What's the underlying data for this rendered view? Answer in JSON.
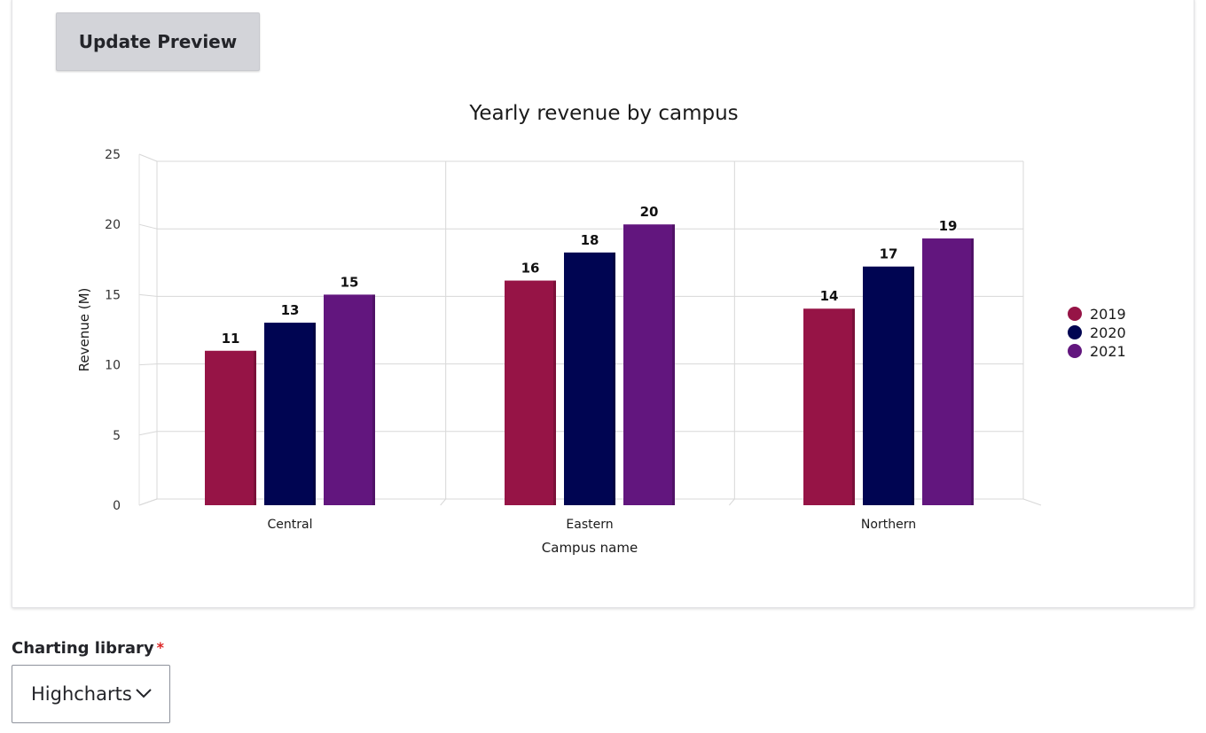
{
  "toolbar": {
    "update_preview_label": "Update Preview"
  },
  "chart_data": {
    "type": "bar",
    "title": "Yearly revenue by campus",
    "xlabel": "Campus name",
    "ylabel": "Revenue (M)",
    "categories": [
      "Central",
      "Eastern",
      "Northern"
    ],
    "ylim": [
      0,
      25
    ],
    "yticks": [
      0,
      5,
      10,
      15,
      20,
      25
    ],
    "grid": true,
    "legend_position": "right",
    "data_labels": true,
    "series": [
      {
        "name": "2019",
        "values": [
          11,
          16,
          14
        ],
        "color": "#961446"
      },
      {
        "name": "2020",
        "values": [
          13,
          18,
          17
        ],
        "color": "#000552"
      },
      {
        "name": "2021",
        "values": [
          15,
          20,
          19
        ],
        "color": "#62167e"
      }
    ]
  },
  "form": {
    "charting_library_label": "Charting library",
    "required_marker": "*",
    "charting_library_value": "Highcharts"
  }
}
